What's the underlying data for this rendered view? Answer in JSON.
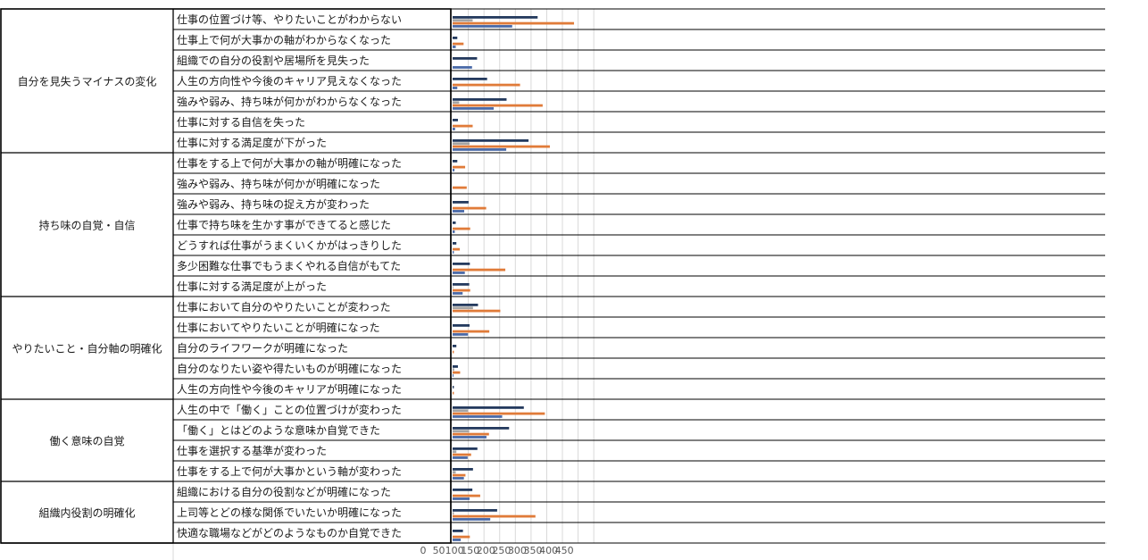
{
  "chart_data": {
    "type": "bar",
    "orientation": "horizontal",
    "title": "",
    "xlabel": "",
    "ylabel": "",
    "xlim": [
      0,
      450
    ],
    "xticks": [
      0,
      50,
      100,
      150,
      200,
      250,
      300,
      350,
      400,
      450
    ],
    "grid": true,
    "legend": "none",
    "colors": {
      "navy": "#243a5e",
      "orange": "#e07b39",
      "gray": "#a5a5a5",
      "blue": "#4a6aa8"
    },
    "groups": [
      {
        "name": "自分を見失うマイナスの変化",
        "categories": [
          {
            "label": "仕事の位置づけ等、やりたいことがわからない",
            "values": [
              271,
              64,
              387,
              190
            ]
          },
          {
            "label": "仕事上で何が大事かの軸がわからなくなった",
            "values": [
              15,
              0,
              35,
              10
            ]
          },
          {
            "label": "組織での自分の役割や居場所を見失った",
            "values": [
              78,
              0,
              0,
              62
            ]
          },
          {
            "label": "人生の方向性や今後のキャリア見えなくなった",
            "values": [
              110,
              0,
              215,
              15
            ]
          },
          {
            "label": "強みや弱み、持ち味が何かがわからなくなった",
            "values": [
              172,
              21,
              287,
              131
            ]
          },
          {
            "label": "仕事に対する自信を失った",
            "values": [
              17,
              0,
              64,
              8
            ]
          },
          {
            "label": "仕事に対する満足度が下がった",
            "values": [
              242,
              54,
              310,
              171
            ]
          }
        ]
      },
      {
        "name": "持ち味の自覚・自信",
        "categories": [
          {
            "label": "仕事をする上で何が大事かの軸が明確になった",
            "values": [
              15,
              0,
              40,
              6
            ]
          },
          {
            "label": "強みや弱み、持ち味が何かが明確になった",
            "values": [
              0,
              0,
              45,
              0
            ]
          },
          {
            "label": "強みや弱み、持ち味の捉え方が変わった",
            "values": [
              51,
              0,
              107,
              37
            ]
          },
          {
            "label": "仕事で持ち味を生かす事ができてると感じた",
            "values": [
              10,
              0,
              56,
              7
            ]
          },
          {
            "label": "どうすれば仕事がうまくいくかがはっきりした",
            "values": [
              12,
              0,
              23,
              4
            ]
          },
          {
            "label": "多少困難な仕事でもうまくやれる自信がもてた",
            "values": [
              55,
              0,
              168,
              39
            ]
          },
          {
            "label": "仕事に対する満足度が上がった",
            "values": [
              53,
              2,
              56,
              32
            ]
          }
        ]
      },
      {
        "name": "やりたいこと・自分軸の明確化",
        "categories": [
          {
            "label": "仕事において自分のやりたいことが変わった",
            "values": [
              81,
              65,
              152,
              0
            ]
          },
          {
            "label": "仕事においてやりたいことが明確になった",
            "values": [
              54,
              0,
              117,
              49
            ]
          },
          {
            "label": "自分のライフワークが明確になった",
            "values": [
              12,
              0,
              4,
              0
            ]
          },
          {
            "label": "自分のなりたい姿や得たいものが明確になった",
            "values": [
              17,
              5,
              24,
              3
            ]
          },
          {
            "label": "人生の方向性や今後のキャリアが明確になった",
            "values": [
              4,
              0,
              4,
              0
            ]
          }
        ]
      },
      {
        "name": "働く意味の自覚",
        "categories": [
          {
            "label": "人生の中で「働く」ことの位置づけが変わった",
            "values": [
              227,
              49,
              294,
              158
            ]
          },
          {
            "label": "「働く」とはどのような意味か自覚できた",
            "values": [
              180,
              53,
              116,
              108
            ]
          },
          {
            "label": "仕事を選択する基準が変わった",
            "values": [
              79,
              12,
              59,
              48
            ]
          },
          {
            "label": "仕事をする上で何が大事かという軸が変わった",
            "values": [
              65,
              10,
              41,
              36
            ]
          }
        ]
      },
      {
        "name": "組織内役割の明確化",
        "categories": [
          {
            "label": "組織における自分の役割などが明確になった",
            "values": [
              63,
              0,
              88,
              54
            ]
          },
          {
            "label": "上司等とどの様な関係でいたいか明確になった",
            "values": [
              142,
              4,
              264,
              120
            ]
          },
          {
            "label": "快適な職場などがどのようなものか自覚できた",
            "values": [
              33,
              0,
              55,
              26
            ]
          }
        ]
      }
    ]
  }
}
